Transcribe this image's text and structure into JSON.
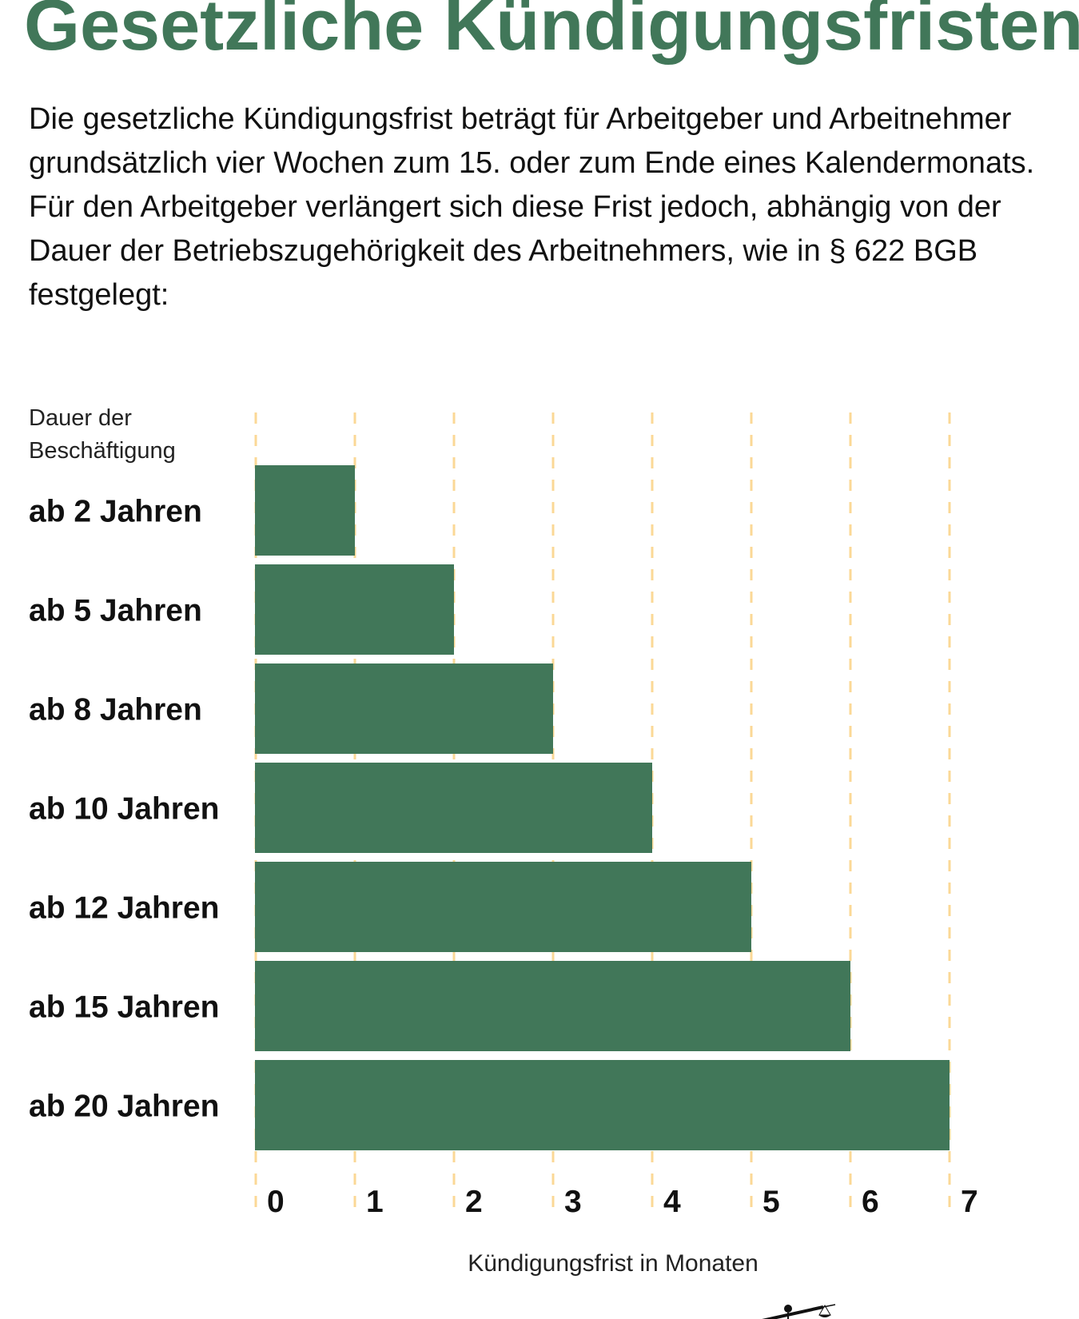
{
  "title": "Gesetzliche Kündigungsfristen",
  "intro": {
    "paragraph1": "Die gesetzliche Kündigungsfrist beträgt für Arbeitgeber und Arbeitnehmer grundsätzlich vier Wochen zum 15. oder zum Ende eines Kalendermonats.",
    "paragraph2": "Für den Arbeitgeber verlängert sich diese Frist jedoch, abhängig von der Dauer der Betriebszugehörigkeit des Arbeitnehmers, wie in § 622 BGB festgelegt:"
  },
  "colors": {
    "bar": "#417759",
    "grid": "#fbd896",
    "title": "#417759"
  },
  "chart_data": {
    "type": "bar",
    "orientation": "horizontal",
    "ylabel_line1": "Dauer der",
    "ylabel_line2": "Beschäftigung",
    "xlabel": "Kündigungsfrist in Monaten",
    "categories": [
      "ab 2 Jahren",
      "ab 5 Jahren",
      "ab 8 Jahren",
      "ab 10 Jahren",
      "ab 12 Jahren",
      "ab 15 Jahren",
      "ab 20 Jahren"
    ],
    "values": [
      1,
      2,
      3,
      4,
      5,
      6,
      7
    ],
    "xlim": [
      0,
      7
    ],
    "xticks": [
      "0",
      "1",
      "2",
      "3",
      "4",
      "5",
      "6",
      "7"
    ],
    "grid": "vertical dashed"
  },
  "logo_icon": "scales-of-justice-figure"
}
